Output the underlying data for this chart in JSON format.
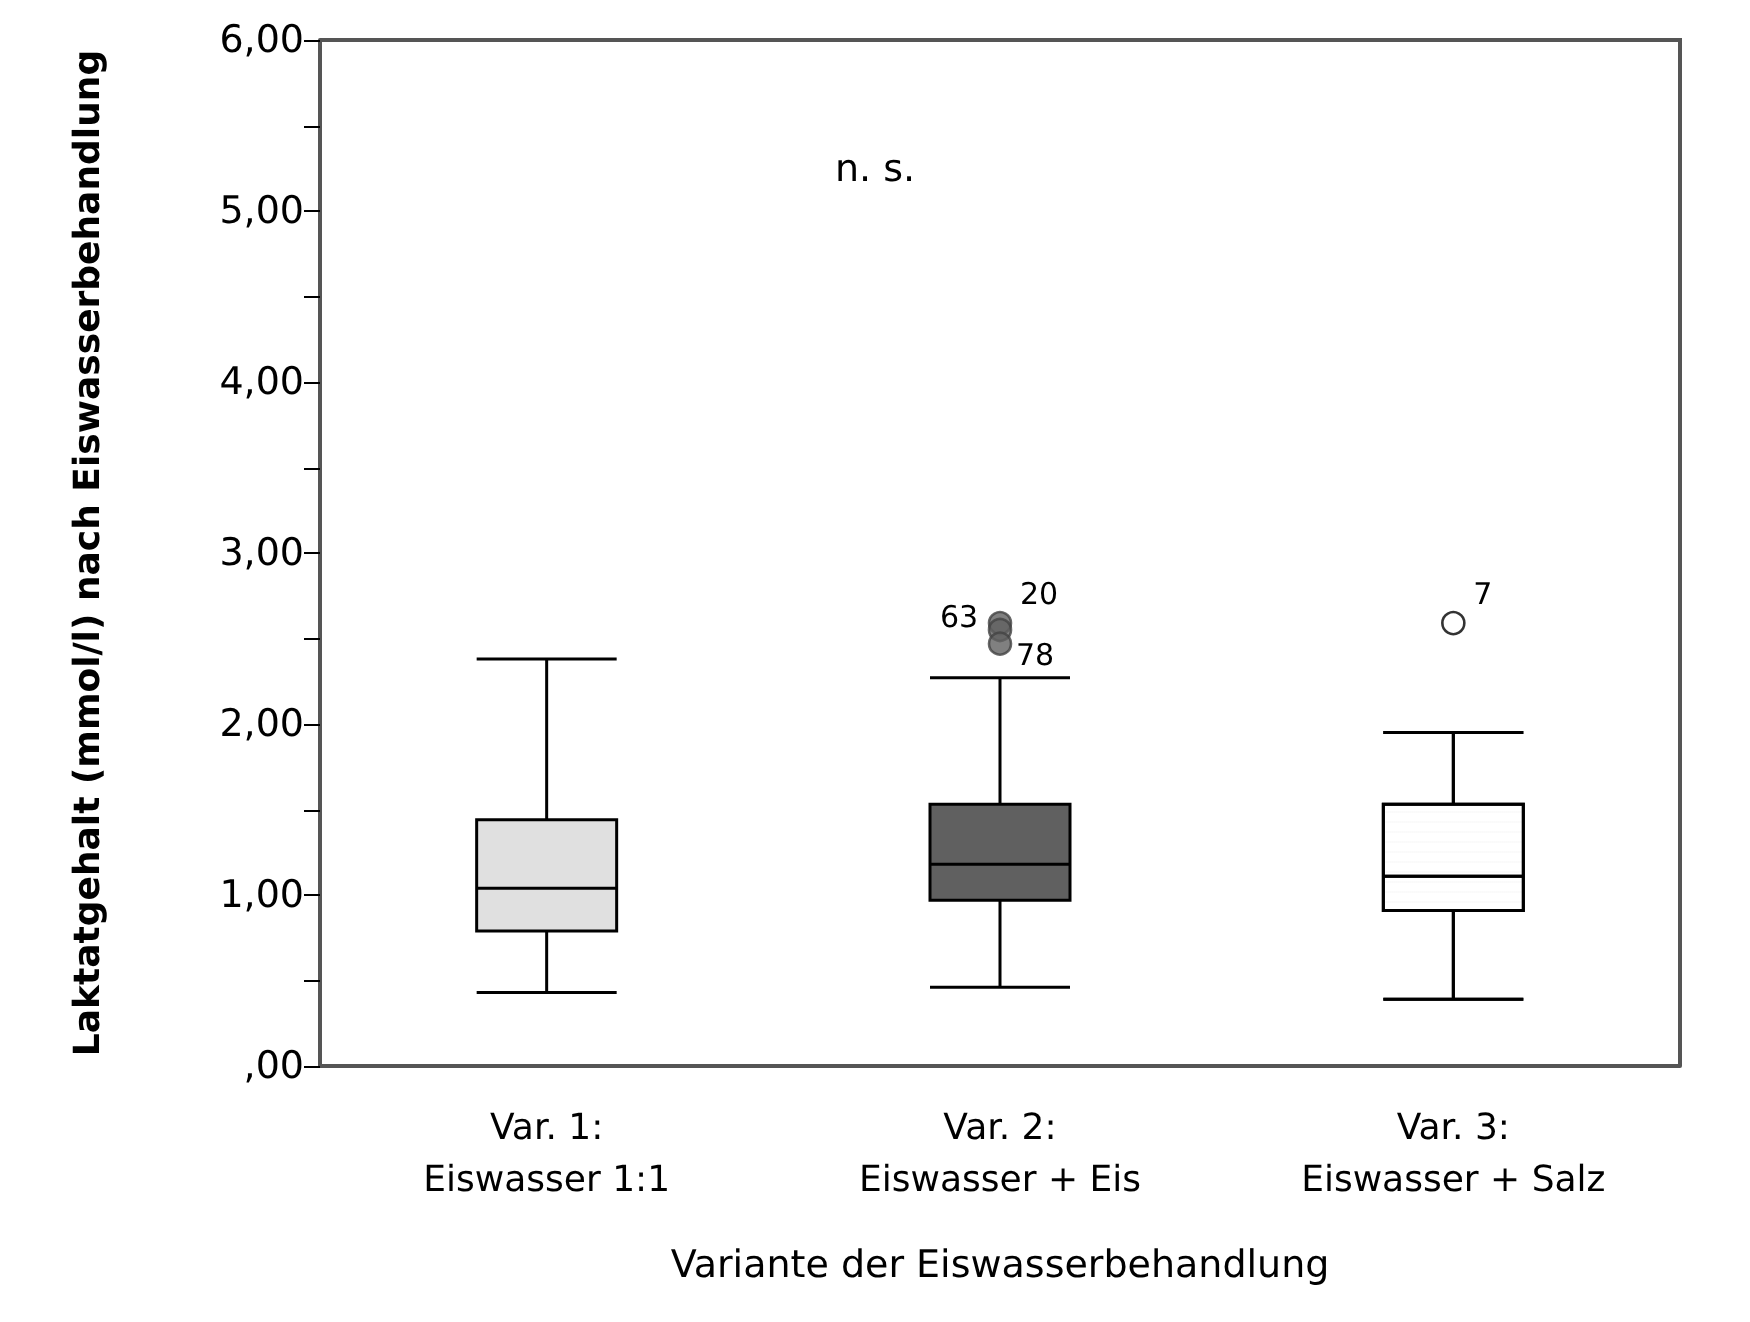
{
  "chart_data": {
    "type": "box",
    "xlabel": "Variante der Eiswasserbehandlung",
    "ylabel": "Laktatgehalt (mmol/l) nach Eiswasserbehandlung",
    "categories": [
      "Var. 1:\nEiswasser 1:1",
      "Var. 2:\nEiswasser + Eis",
      "Var. 3:\nEiswasser + Salz"
    ],
    "colors": [
      "#e0e0e0",
      "#606060",
      "#ffffff"
    ],
    "boxes": [
      {
        "low": 0.43,
        "q1": 0.79,
        "median": 1.04,
        "q3": 1.44,
        "high": 2.38
      },
      {
        "low": 0.46,
        "q1": 0.97,
        "median": 1.18,
        "q3": 1.53,
        "high": 2.27
      },
      {
        "low": 0.39,
        "q1": 0.91,
        "median": 1.11,
        "q3": 1.53,
        "high": 1.95
      }
    ],
    "series": [
      {
        "type": "scatter",
        "marker": "circle",
        "x": [
          "Var. 2:\nEiswasser + Eis",
          "Var. 2:\nEiswasser + Eis",
          "Var. 2:\nEiswasser + Eis",
          "Var. 3:\nEiswasser + Salz"
        ],
        "values": [
          2.59,
          2.55,
          2.47,
          2.59
        ],
        "colors": [
          "#606060",
          "#606060",
          "#606060",
          "#ffffff"
        ]
      }
    ],
    "ylim": [
      0,
      6
    ],
    "yticks": [
      {
        "value": 0,
        "label": ",00"
      },
      {
        "value": 0.5,
        "label": null
      },
      {
        "value": 1,
        "label": "1,00"
      },
      {
        "value": 1.5,
        "label": null
      },
      {
        "value": 2,
        "label": "2,00"
      },
      {
        "value": 2.5,
        "label": null
      },
      {
        "value": 3,
        "label": "3,00"
      },
      {
        "value": 3.5,
        "label": null
      },
      {
        "value": 4,
        "label": "4,00"
      },
      {
        "value": 4.5,
        "label": null
      },
      {
        "value": 5,
        "label": "5,00"
      },
      {
        "value": 5.5,
        "label": null
      },
      {
        "value": 6,
        "label": "6,00"
      }
    ],
    "grid": false,
    "annotations": [
      "n. s.",
      {
        "text": "20",
        "x": "Var. 2:\nEiswasser + Eis",
        "y": 2.59
      },
      {
        "text": "63",
        "x": "Var. 2:\nEiswasser + Eis",
        "y": 2.55
      },
      {
        "text": "78",
        "x": "Var. 2:\nEiswasser + Eis",
        "y": 2.47
      },
      {
        "text": "7",
        "x": "Var. 3:\nEiswasser + Salz",
        "y": 2.59
      }
    ]
  }
}
